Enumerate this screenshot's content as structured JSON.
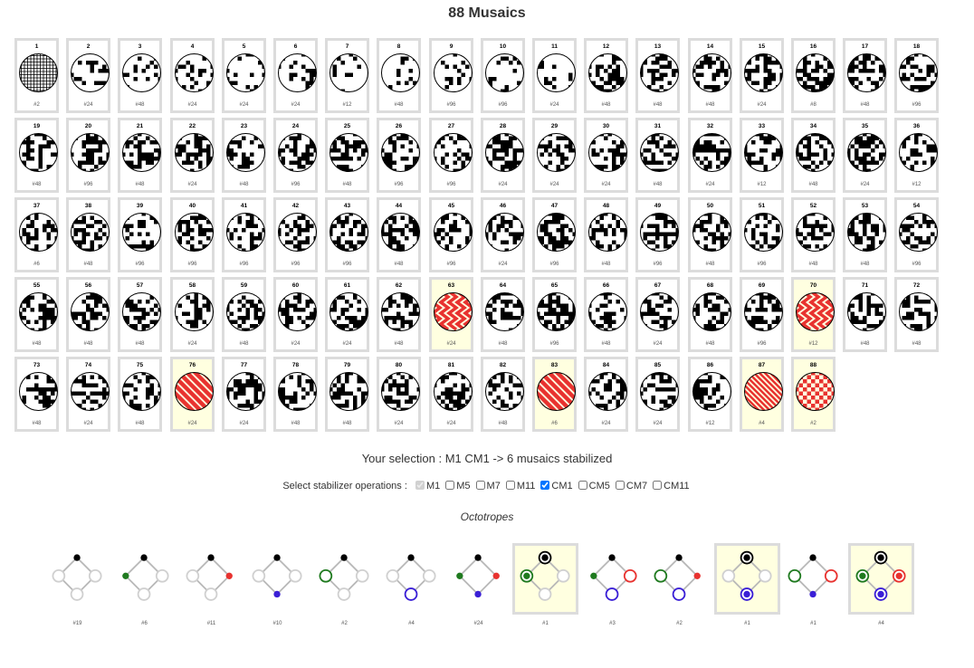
{
  "page": {
    "title": "88 Musaics"
  },
  "mosaics": [
    {
      "n": "1",
      "c": "#2"
    },
    {
      "n": "2",
      "c": "#24"
    },
    {
      "n": "3",
      "c": "#48"
    },
    {
      "n": "4",
      "c": "#24"
    },
    {
      "n": "5",
      "c": "#24"
    },
    {
      "n": "6",
      "c": "#24"
    },
    {
      "n": "7",
      "c": "#12"
    },
    {
      "n": "8",
      "c": "#48"
    },
    {
      "n": "9",
      "c": "#96"
    },
    {
      "n": "10",
      "c": "#96"
    },
    {
      "n": "11",
      "c": "#24"
    },
    {
      "n": "12",
      "c": "#48"
    },
    {
      "n": "13",
      "c": "#48"
    },
    {
      "n": "14",
      "c": "#48"
    },
    {
      "n": "15",
      "c": "#24"
    },
    {
      "n": "16",
      "c": "#8"
    },
    {
      "n": "17",
      "c": "#48"
    },
    {
      "n": "18",
      "c": "#96"
    },
    {
      "n": "19",
      "c": "#48"
    },
    {
      "n": "20",
      "c": "#96"
    },
    {
      "n": "21",
      "c": "#48"
    },
    {
      "n": "22",
      "c": "#24"
    },
    {
      "n": "23",
      "c": "#48"
    },
    {
      "n": "24",
      "c": "#96"
    },
    {
      "n": "25",
      "c": "#48"
    },
    {
      "n": "26",
      "c": "#96"
    },
    {
      "n": "27",
      "c": "#96"
    },
    {
      "n": "28",
      "c": "#24"
    },
    {
      "n": "29",
      "c": "#24"
    },
    {
      "n": "30",
      "c": "#24"
    },
    {
      "n": "31",
      "c": "#48"
    },
    {
      "n": "32",
      "c": "#24"
    },
    {
      "n": "33",
      "c": "#12"
    },
    {
      "n": "34",
      "c": "#48"
    },
    {
      "n": "35",
      "c": "#24"
    },
    {
      "n": "36",
      "c": "#12"
    },
    {
      "n": "37",
      "c": "#6"
    },
    {
      "n": "38",
      "c": "#48"
    },
    {
      "n": "39",
      "c": "#96"
    },
    {
      "n": "40",
      "c": "#96"
    },
    {
      "n": "41",
      "c": "#96"
    },
    {
      "n": "42",
      "c": "#96"
    },
    {
      "n": "43",
      "c": "#96"
    },
    {
      "n": "44",
      "c": "#48"
    },
    {
      "n": "45",
      "c": "#96"
    },
    {
      "n": "46",
      "c": "#24"
    },
    {
      "n": "47",
      "c": "#96"
    },
    {
      "n": "48",
      "c": "#48"
    },
    {
      "n": "49",
      "c": "#96"
    },
    {
      "n": "50",
      "c": "#48"
    },
    {
      "n": "51",
      "c": "#96"
    },
    {
      "n": "52",
      "c": "#48"
    },
    {
      "n": "53",
      "c": "#48"
    },
    {
      "n": "54",
      "c": "#96"
    },
    {
      "n": "55",
      "c": "#48"
    },
    {
      "n": "56",
      "c": "#48"
    },
    {
      "n": "57",
      "c": "#48"
    },
    {
      "n": "58",
      "c": "#24"
    },
    {
      "n": "59",
      "c": "#48"
    },
    {
      "n": "60",
      "c": "#24"
    },
    {
      "n": "61",
      "c": "#24"
    },
    {
      "n": "62",
      "c": "#48"
    },
    {
      "n": "63",
      "c": "#24",
      "sel": true
    },
    {
      "n": "64",
      "c": "#48"
    },
    {
      "n": "65",
      "c": "#96"
    },
    {
      "n": "66",
      "c": "#48"
    },
    {
      "n": "67",
      "c": "#24"
    },
    {
      "n": "68",
      "c": "#48"
    },
    {
      "n": "69",
      "c": "#96"
    },
    {
      "n": "70",
      "c": "#12",
      "sel": true
    },
    {
      "n": "71",
      "c": "#48"
    },
    {
      "n": "72",
      "c": "#48"
    },
    {
      "n": "73",
      "c": "#48"
    },
    {
      "n": "74",
      "c": "#24"
    },
    {
      "n": "75",
      "c": "#48"
    },
    {
      "n": "76",
      "c": "#24",
      "sel": true
    },
    {
      "n": "77",
      "c": "#24"
    },
    {
      "n": "78",
      "c": "#48"
    },
    {
      "n": "79",
      "c": "#48"
    },
    {
      "n": "80",
      "c": "#24"
    },
    {
      "n": "81",
      "c": "#24"
    },
    {
      "n": "82",
      "c": "#48"
    },
    {
      "n": "83",
      "c": "#6",
      "sel": true
    },
    {
      "n": "84",
      "c": "#24"
    },
    {
      "n": "85",
      "c": "#24"
    },
    {
      "n": "86",
      "c": "#12"
    },
    {
      "n": "87",
      "c": "#4",
      "sel": true
    },
    {
      "n": "88",
      "c": "#2",
      "sel": true
    }
  ],
  "selection": {
    "text": "Your selection : M1 CM1 -> 6 musaics stabilized"
  },
  "ops": {
    "label": "Select stabilizer operations :",
    "items": [
      {
        "label": "M1",
        "checked": true,
        "disabled": true
      },
      {
        "label": "M5",
        "checked": false
      },
      {
        "label": "M7",
        "checked": false
      },
      {
        "label": "M11",
        "checked": false
      },
      {
        "label": "CM1",
        "checked": true
      },
      {
        "label": "CM5",
        "checked": false
      },
      {
        "label": "CM7",
        "checked": false
      },
      {
        "label": "CM11",
        "checked": false
      }
    ]
  },
  "octotropes": {
    "title": "Octotropes",
    "items": [
      {
        "c": "#19",
        "nodes": [
          "dot",
          "gray-ring",
          "gray-ring",
          "gray-ring"
        ]
      },
      {
        "c": "#6",
        "nodes": [
          "dot",
          "green-dot",
          "gray-ring",
          "gray-ring"
        ]
      },
      {
        "c": "#11",
        "nodes": [
          "dot",
          "gray-ring",
          "red-dot",
          "gray-ring"
        ]
      },
      {
        "c": "#10",
        "nodes": [
          "dot",
          "gray-ring",
          "gray-ring",
          "blue-dot"
        ]
      },
      {
        "c": "#2",
        "nodes": [
          "dot",
          "green-ring",
          "gray-ring",
          "gray-ring"
        ]
      },
      {
        "c": "#4",
        "nodes": [
          "dot",
          "gray-ring",
          "gray-ring",
          "blue-ring"
        ]
      },
      {
        "c": "#24",
        "nodes": [
          "dot",
          "green-dot",
          "red-dot",
          "blue-dot"
        ]
      },
      {
        "c": "#1",
        "nodes": [
          "black-ring",
          "green-ring",
          "gray-ring",
          "gray-ring"
        ],
        "sel": true
      },
      {
        "c": "#3",
        "nodes": [
          "dot",
          "green-dot",
          "red-ring",
          "blue-ring"
        ]
      },
      {
        "c": "#2",
        "nodes": [
          "dot",
          "green-ring",
          "red-dot",
          "blue-ring"
        ]
      },
      {
        "c": "#1",
        "nodes": [
          "black-ring",
          "gray-ring",
          "gray-ring",
          "blue-ring"
        ],
        "sel": true
      },
      {
        "c": "#1",
        "nodes": [
          "dot",
          "green-ring",
          "red-ring",
          "blue-dot"
        ]
      },
      {
        "c": "#4",
        "nodes": [
          "black-ring",
          "green-ring",
          "red-ring",
          "blue-ring"
        ],
        "sel": true
      }
    ]
  },
  "colors": {
    "highlight": "#ffffe0",
    "tile_border": "#dcdcdc",
    "red": "#e8322f",
    "green": "#1f7a1f",
    "blue": "#3a1fd6"
  }
}
